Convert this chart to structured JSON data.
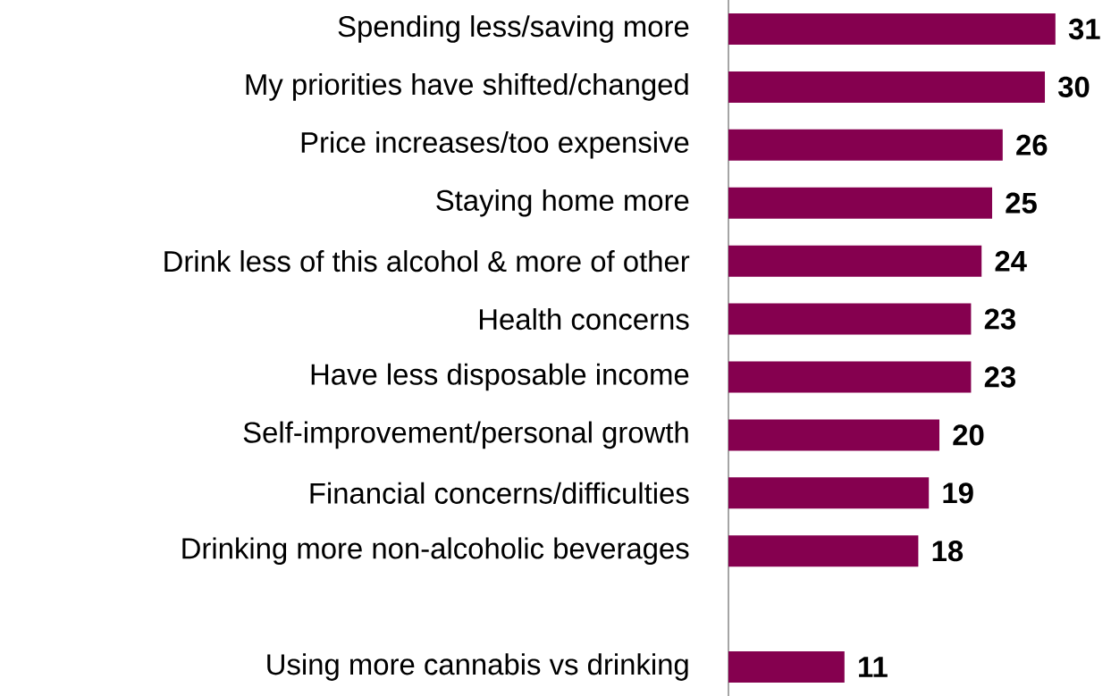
{
  "chart_data": {
    "type": "bar",
    "orientation": "horizontal",
    "data_labels": true,
    "color": "#85004f",
    "categories": [
      "Spending less/saving more",
      "My priorities have shifted/changed",
      "Price increases/too expensive",
      "Staying home more",
      "Drink less of this alcohol & more of other",
      "Health concerns",
      "Have less disposable income",
      "Self-improvement/personal growth",
      "Financial concerns/difficulties",
      "Drinking more non-alcoholic beverages",
      null,
      "Using more cannabis vs drinking"
    ],
    "values": [
      31,
      30,
      26,
      25,
      24,
      23,
      23,
      20,
      19,
      18,
      null,
      11
    ]
  }
}
